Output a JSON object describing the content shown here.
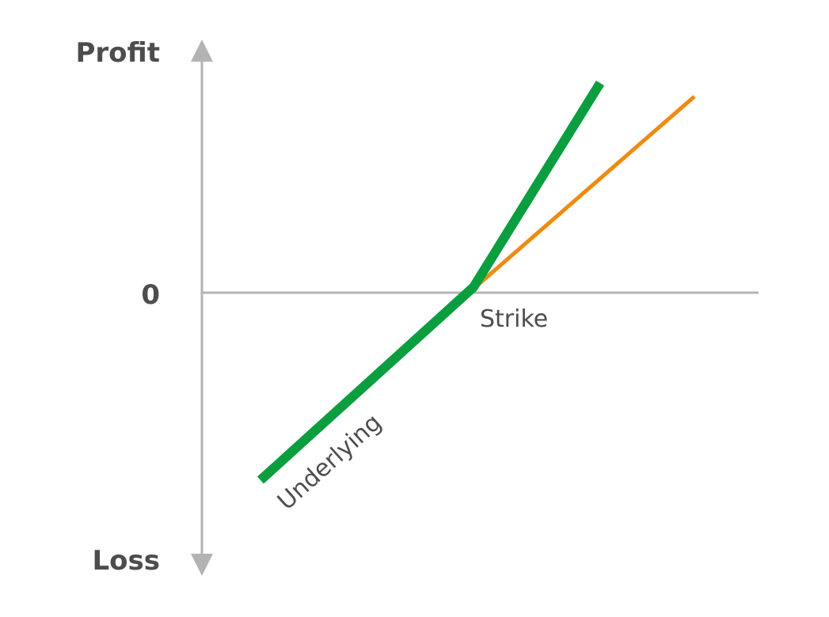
{
  "labels": {
    "profit": "Profit",
    "zero": "0",
    "loss": "Loss",
    "strike": "Strike",
    "underlying": "Underlying"
  },
  "colors": {
    "axis": "#b3b3b3",
    "axis_text": "#4d4d4d",
    "annotation_text": "#4d4d4d",
    "underlying_line": "#0a9e3f",
    "option_line": "#ef8a10"
  }
}
